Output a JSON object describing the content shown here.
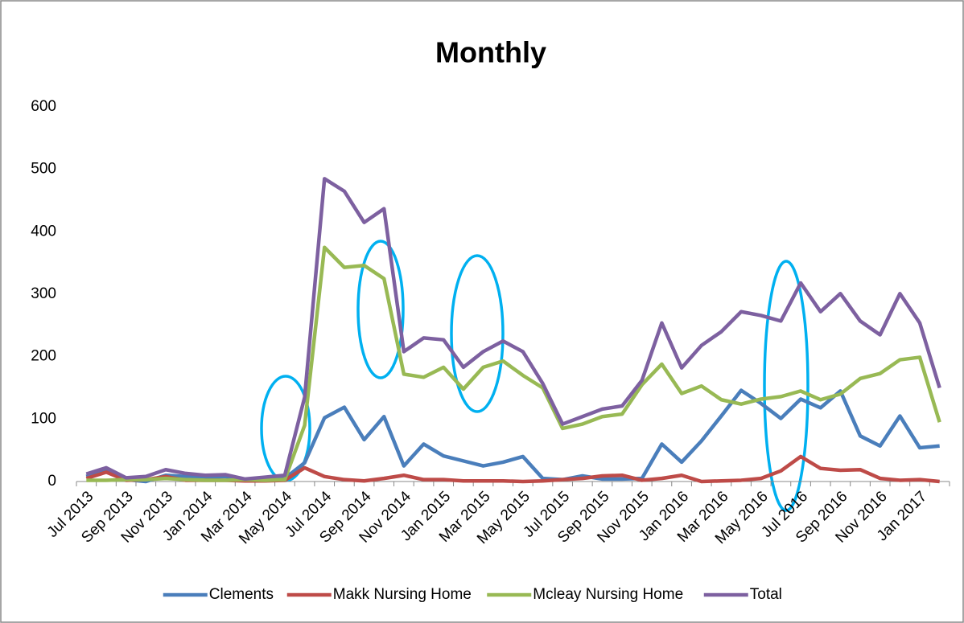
{
  "chart_data": {
    "type": "line",
    "title": "Monthly",
    "categories": [
      "Jul 2013",
      null,
      "Sep 2013",
      null,
      "Nov 2013",
      null,
      "Jan 2014",
      null,
      "Mar 2014",
      null,
      "May 2014",
      null,
      "Jul 2014",
      null,
      "Sep 2014",
      null,
      "Nov 2014",
      null,
      "Jan 2015",
      null,
      "Mar 2015",
      null,
      "May 2015",
      null,
      "Jul 2015",
      null,
      "Sep 2015",
      null,
      "Nov 2015",
      null,
      "Jan 2016",
      null,
      "Mar 2016",
      null,
      "May 2016",
      null,
      "Jul 2016",
      null,
      "Sep 2016",
      null,
      "Nov 2016",
      null,
      "Jan 2017",
      null
    ],
    "series": [
      {
        "name": "Clements",
        "color": "#4a7ebb",
        "values": [
          8,
          20,
          3,
          0,
          10,
          8,
          6,
          8,
          2,
          4,
          5,
          30,
          102,
          119,
          67,
          104,
          25,
          60,
          41,
          33,
          25,
          31,
          40,
          5,
          3,
          9,
          4,
          4,
          5,
          60,
          31,
          65,
          105,
          146,
          125,
          101,
          132,
          118,
          145,
          73,
          57,
          105,
          54,
          57
        ]
      },
      {
        "name": "Makk Nursing Home",
        "color": "#be4b48",
        "values": [
          5,
          15,
          2,
          3,
          8,
          2,
          2,
          2,
          1,
          1,
          2,
          22,
          8,
          3,
          1,
          5,
          10,
          3,
          3,
          1,
          1,
          1,
          0,
          1,
          3,
          5,
          9,
          10,
          2,
          5,
          10,
          0,
          1,
          2,
          5,
          17,
          40,
          21,
          18,
          19,
          5,
          2,
          3,
          0
        ]
      },
      {
        "name": "Mcleay Nursing Home",
        "color": "#98b954",
        "values": [
          2,
          2,
          3,
          3,
          5,
          3,
          2,
          2,
          3,
          2,
          3,
          90,
          375,
          343,
          346,
          325,
          172,
          167,
          183,
          148,
          183,
          193,
          170,
          150,
          85,
          92,
          104,
          108,
          155,
          188,
          141,
          153,
          131,
          124,
          132,
          136,
          145,
          131,
          140,
          165,
          173,
          195,
          199,
          95
        ]
      },
      {
        "name": "Total",
        "color": "#7d60a0",
        "values": [
          12,
          22,
          6,
          8,
          19,
          13,
          10,
          11,
          4,
          7,
          10,
          135,
          485,
          465,
          415,
          437,
          208,
          230,
          227,
          183,
          208,
          225,
          208,
          157,
          92,
          104,
          116,
          121,
          162,
          254,
          182,
          218,
          240,
          272,
          266,
          257,
          318,
          272,
          301,
          257,
          235,
          301,
          254,
          150
        ]
      }
    ],
    "ylim": [
      0,
      600
    ],
    "yticks": [
      0,
      100,
      200,
      300,
      400,
      500,
      600
    ],
    "grid": false,
    "legend": "bottom"
  }
}
